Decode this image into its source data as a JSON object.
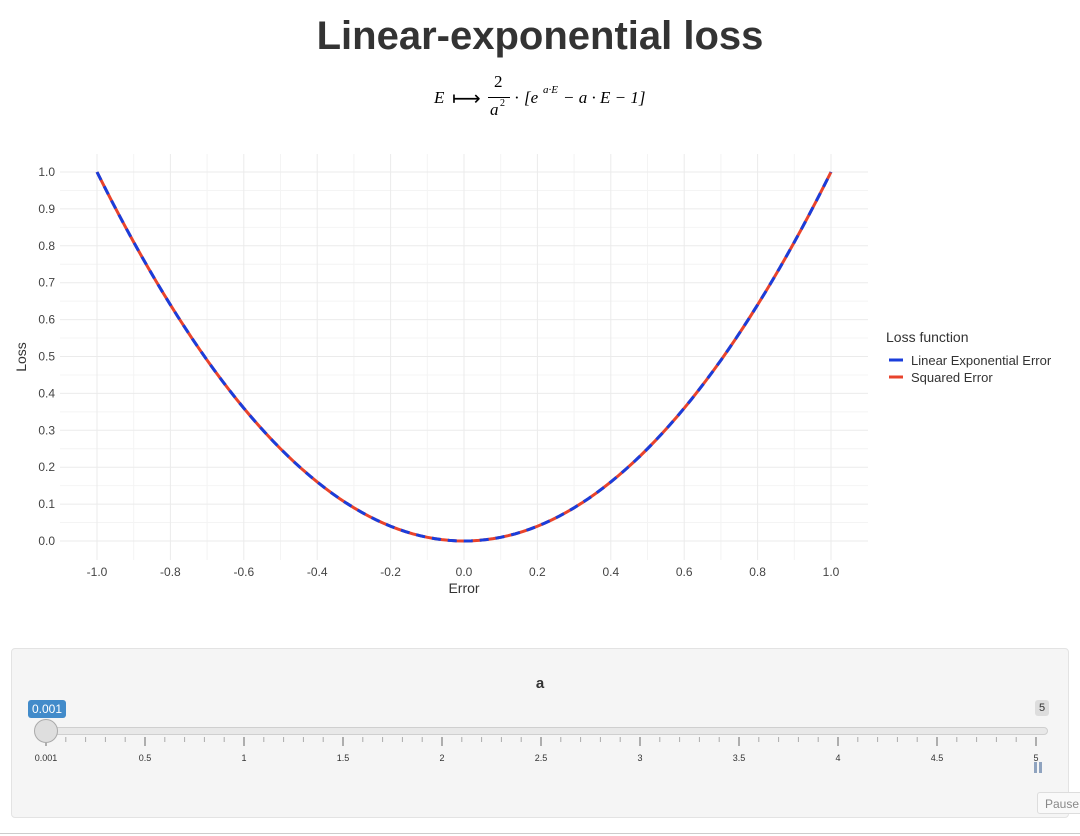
{
  "page": {
    "title": "Linear-exponential loss",
    "formula": {
      "lhs": "E",
      "arrow": "⟼",
      "numerator": "2",
      "denominator_base": "a",
      "denominator_exp": "2",
      "dot": "·",
      "bracket_open": "[e",
      "exponent": "a·E",
      "rest": " − a · E − 1]"
    }
  },
  "chart_data": {
    "type": "line",
    "title": "",
    "xlabel": "Error",
    "ylabel": "Loss",
    "xlim": [
      -1.0,
      1.0
    ],
    "ylim": [
      0.0,
      1.0
    ],
    "x_ticks": [
      "-1.0",
      "-0.8",
      "-0.6",
      "-0.4",
      "-0.2",
      "0.0",
      "0.2",
      "0.4",
      "0.6",
      "0.8",
      "1.0"
    ],
    "y_ticks": [
      "0.0",
      "0.1",
      "0.2",
      "0.3",
      "0.4",
      "0.5",
      "0.6",
      "0.7",
      "0.8",
      "0.9",
      "1.0"
    ],
    "grid": true,
    "legend": {
      "title": "Loss function",
      "placement": "right",
      "entries": [
        {
          "name": "Linear Exponential Error",
          "color": "#1a3ddb"
        },
        {
          "name": "Squared Error",
          "color": "#e8432c"
        }
      ]
    },
    "series": [
      {
        "name": "Linear Exponential Error",
        "color": "#1a3ddb",
        "style": "solid",
        "x": [
          -1.0,
          -0.8,
          -0.6,
          -0.4,
          -0.2,
          0.0,
          0.2,
          0.4,
          0.6,
          0.8,
          1.0
        ],
        "y": [
          1.0,
          0.64,
          0.36,
          0.16,
          0.04,
          0.0,
          0.04,
          0.16,
          0.36,
          0.64,
          1.0
        ]
      },
      {
        "name": "Squared Error",
        "color": "#e8432c",
        "style": "dashed",
        "x": [
          -1.0,
          -0.8,
          -0.6,
          -0.4,
          -0.2,
          0.0,
          0.2,
          0.4,
          0.6,
          0.8,
          1.0
        ],
        "y": [
          1.0,
          0.64,
          0.36,
          0.16,
          0.04,
          0.0,
          0.04,
          0.16,
          0.36,
          0.64,
          1.0
        ]
      }
    ]
  },
  "slider": {
    "label": "a",
    "value": "0.001",
    "min": "0.001",
    "max": "5",
    "max_badge": "5",
    "value_fraction": 0.0,
    "tick_labels": [
      "0.001",
      "0.5",
      "1",
      "1.5",
      "2",
      "2.5",
      "3",
      "3.5",
      "4",
      "4.5",
      "5"
    ],
    "pause_label": "Pause"
  },
  "colors": {
    "accent": "#428bca",
    "linexp": "#1a3ddb",
    "squared": "#e8432c"
  }
}
